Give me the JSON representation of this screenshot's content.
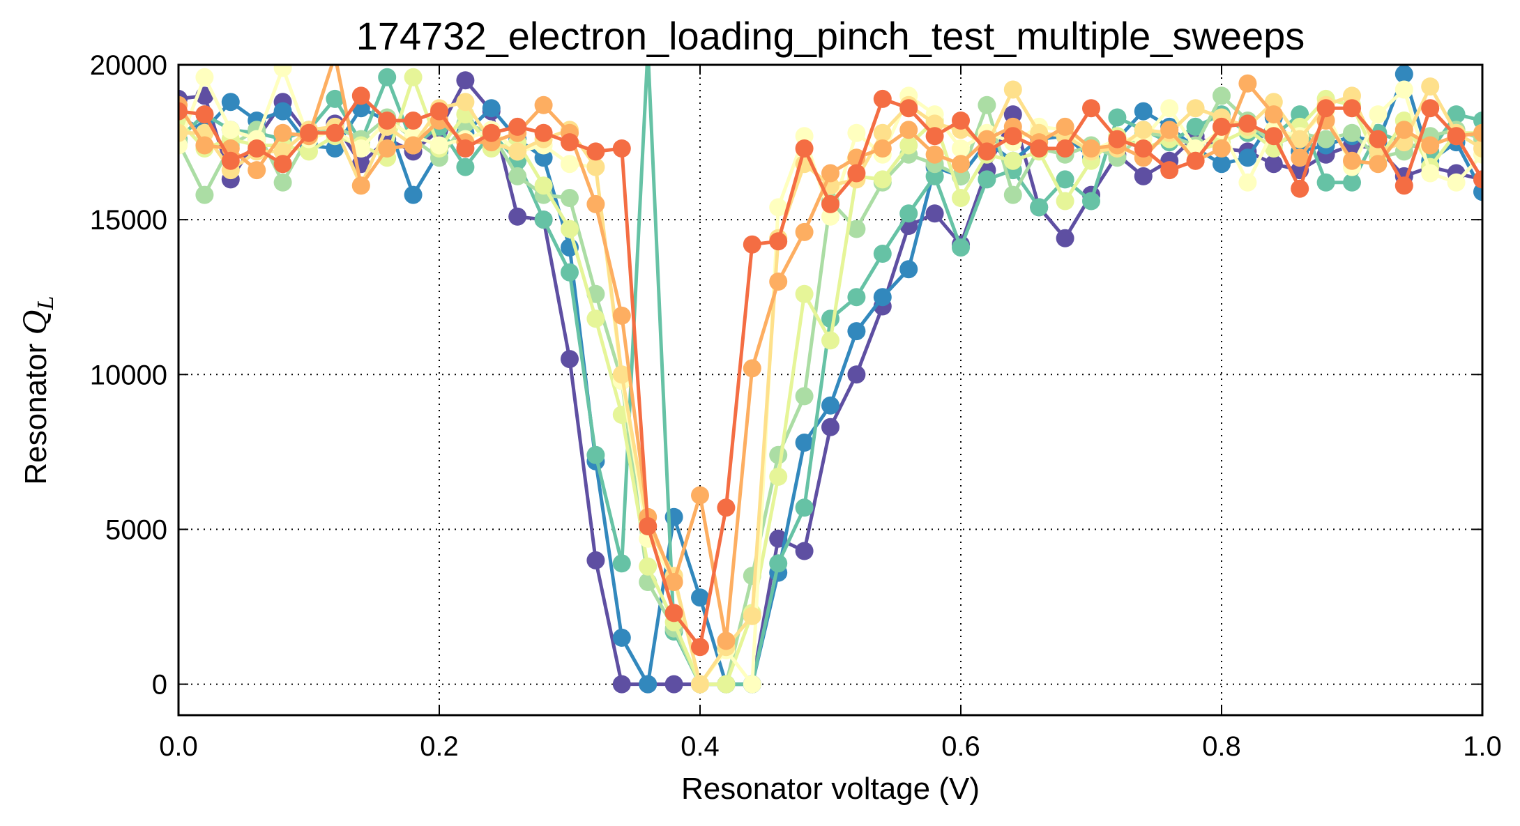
{
  "chart_data": {
    "type": "line",
    "title": "174732_electron_loading_pinch_test_multiple_sweeps",
    "xlabel": "Resonator voltage (V)",
    "ylabel_text": "Resonator ",
    "ylabel_math": "Q",
    "ylabel_sub": "L",
    "xlim": [
      0.0,
      1.0
    ],
    "ylim": [
      -1000,
      20000
    ],
    "xticks": [
      0.0,
      0.2,
      0.4,
      0.6,
      0.8,
      1.0
    ],
    "xtick_labels": [
      "0.0",
      "0.2",
      "0.4",
      "0.6",
      "0.8",
      "1.0"
    ],
    "yticks": [
      0,
      5000,
      10000,
      15000,
      20000
    ],
    "ytick_labels": [
      "0",
      "5000",
      "10000",
      "15000",
      "20000"
    ],
    "grid": true,
    "x": [
      0.0,
      0.02,
      0.04,
      0.06,
      0.08,
      0.1,
      0.12,
      0.14,
      0.16,
      0.18,
      0.2,
      0.22,
      0.24,
      0.26,
      0.28,
      0.3,
      0.32,
      0.34,
      0.36,
      0.38,
      0.4,
      0.42,
      0.44,
      0.46,
      0.48,
      0.5,
      0.52,
      0.54,
      0.56,
      0.58,
      0.6,
      0.62,
      0.64,
      0.66,
      0.68,
      0.7,
      0.72,
      0.74,
      0.76,
      0.78,
      0.8,
      0.82,
      0.84,
      0.86,
      0.88,
      0.9,
      0.92,
      0.94,
      0.96,
      0.98,
      1.0
    ],
    "series": [
      {
        "color": "#5e4fa2",
        "values": [
          18900,
          19000,
          16300,
          17600,
          18800,
          17700,
          18100,
          16800,
          17600,
          17200,
          17900,
          19500,
          18500,
          15100,
          15000,
          10500,
          4000,
          0,
          0,
          0,
          0,
          0,
          0,
          4700,
          4300,
          8300,
          10000,
          12200,
          14800,
          15200,
          14200,
          16600,
          18400,
          15400,
          14400,
          15800,
          17100,
          16400,
          16900,
          17700,
          17300,
          17200,
          16800,
          16600,
          17100,
          17400,
          17300,
          16400,
          16700,
          16500,
          16300
        ]
      },
      {
        "color": "#3288bd",
        "values": [
          18300,
          17900,
          18800,
          18200,
          18500,
          17400,
          17300,
          18600,
          18200,
          15800,
          17200,
          17800,
          18600,
          17600,
          17000,
          14100,
          7200,
          1500,
          0,
          5400,
          2800,
          0,
          0,
          3600,
          7800,
          9000,
          11400,
          12500,
          13400,
          16700,
          16400,
          17500,
          16900,
          17600,
          17700,
          17000,
          17600,
          18500,
          18000,
          17300,
          16800,
          17000,
          18300,
          17200,
          17400,
          17700,
          17500,
          19700,
          16900,
          17500,
          15900
        ]
      },
      {
        "color": "#66c2a5",
        "values": [
          17600,
          18400,
          17900,
          17800,
          17600,
          17900,
          18900,
          17500,
          19600,
          17400,
          18000,
          16700,
          17800,
          16900,
          15000,
          13300,
          7400,
          3900,
          20500,
          1700,
          0,
          0,
          0,
          3900,
          5700,
          11800,
          12500,
          13900,
          15200,
          16400,
          14100,
          16300,
          16600,
          15400,
          16300,
          15600,
          18300,
          17900,
          17500,
          18000,
          18400,
          17800,
          17700,
          18400,
          16200,
          16200,
          17800,
          17500,
          17200,
          18400,
          18200
        ]
      },
      {
        "color": "#abdda4",
        "values": [
          17500,
          15800,
          17400,
          17900,
          16200,
          17700,
          18000,
          17600,
          18300,
          17600,
          17000,
          18100,
          17800,
          16400,
          15800,
          15700,
          12600,
          9800,
          3300,
          1800,
          0,
          0,
          3500,
          7400,
          9300,
          15600,
          14700,
          16200,
          17100,
          16800,
          16400,
          18700,
          15800,
          17300,
          17100,
          17400,
          17000,
          17800,
          17700,
          17400,
          19000,
          18200,
          17400,
          17800,
          17600,
          17800,
          17000,
          17200,
          17700,
          17900,
          17600
        ]
      },
      {
        "color": "#e6f598",
        "values": [
          18200,
          17300,
          17600,
          17400,
          17400,
          17200,
          17700,
          17400,
          17000,
          19600,
          17300,
          18400,
          17300,
          17500,
          16100,
          14700,
          11800,
          8700,
          3800,
          2000,
          0,
          0,
          2300,
          6700,
          12600,
          11100,
          16400,
          16300,
          17400,
          18200,
          15700,
          17100,
          16900,
          17200,
          15600,
          16900,
          17700,
          17300,
          17600,
          17200,
          17500,
          17900,
          17300,
          18000,
          18900,
          18700,
          16900,
          18200,
          16700,
          17800,
          17800
        ]
      },
      {
        "color": "#ffffbf",
        "values": [
          17400,
          19600,
          17900,
          17600,
          19900,
          17600,
          17900,
          17300,
          18200,
          17700,
          17400,
          17600,
          17900,
          17200,
          17400,
          16800,
          16700,
          9800,
          4700,
          3400,
          0,
          1100,
          0,
          15400,
          17700,
          15100,
          17800,
          17100,
          19000,
          18400,
          17300,
          17800,
          17500,
          18000,
          17900,
          17200,
          17600,
          17600,
          18600,
          17300,
          17900,
          16200,
          17900,
          17700,
          18500,
          16700,
          18400,
          19200,
          16500,
          16200,
          17100
        ]
      },
      {
        "color": "#fee08b",
        "values": [
          17800,
          17800,
          16600,
          17200,
          17200,
          17900,
          18000,
          16100,
          18000,
          17400,
          18600,
          18800,
          17500,
          17200,
          17600,
          17900,
          16700,
          10000,
          5100,
          3500,
          0,
          1200,
          2200,
          14400,
          16800,
          16100,
          16300,
          17800,
          18700,
          18100,
          17900,
          17400,
          19200,
          17800,
          17700,
          17200,
          17300,
          17900,
          17800,
          18600,
          18300,
          18000,
          18800,
          17600,
          18700,
          19000,
          17200,
          17500,
          19300,
          17800,
          17300
        ]
      },
      {
        "color": "#fdae61",
        "values": [
          18700,
          17400,
          17300,
          16600,
          17800,
          17700,
          20300,
          16100,
          17300,
          17400,
          18200,
          17500,
          17500,
          17800,
          18700,
          17800,
          15500,
          11900,
          5400,
          3300,
          6100,
          1400,
          10200,
          13000,
          14600,
          16500,
          17000,
          17300,
          17900,
          17100,
          16800,
          17600,
          18000,
          17500,
          18000,
          17300,
          17400,
          17000,
          17900,
          16900,
          17300,
          19400,
          18400,
          17000,
          18200,
          16900,
          16800,
          17900,
          17400,
          17700,
          17800
        ]
      },
      {
        "color": "#f46d43",
        "values": [
          18500,
          18400,
          16900,
          17300,
          16800,
          17800,
          17800,
          19000,
          18200,
          18200,
          18500,
          17300,
          17800,
          18000,
          17800,
          17500,
          17200,
          17300,
          5100,
          2300,
          1200,
          5700,
          14200,
          14300,
          17300,
          15500,
          16500,
          18900,
          18600,
          17700,
          18200,
          17200,
          17700,
          17300,
          17300,
          18600,
          17600,
          17300,
          16600,
          16900,
          18000,
          18100,
          17700,
          16000,
          18600,
          18600,
          17600,
          16100,
          18600,
          17700,
          16300
        ]
      }
    ]
  }
}
